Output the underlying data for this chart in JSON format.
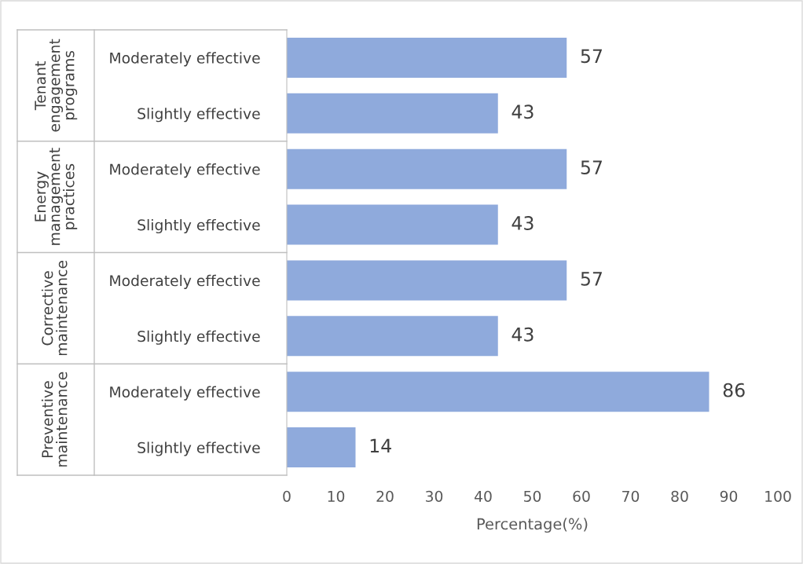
{
  "chart_data": {
    "type": "bar",
    "orientation": "horizontal",
    "xlabel": "Percentage(%)",
    "categories": [
      "Moderately effective",
      "Slightly effective",
      "Moderately effective",
      "Slightly effective",
      "Moderately effective",
      "Slightly effective",
      "Moderately effective",
      "Slightly effective"
    ],
    "values": [
      57,
      43,
      57,
      43,
      57,
      43,
      86,
      14
    ],
    "color": "#8faadc",
    "annotations": [
      "Tenant engagement programs",
      "Energy management practices",
      "Corrective maintenance",
      "Preventive maintenance"
    ],
    "xlim": [
      0,
      100
    ],
    "xticks": [
      0,
      10,
      20,
      30,
      40,
      50,
      60,
      70,
      80,
      90,
      100
    ],
    "data_labels": true,
    "grid": false
  }
}
